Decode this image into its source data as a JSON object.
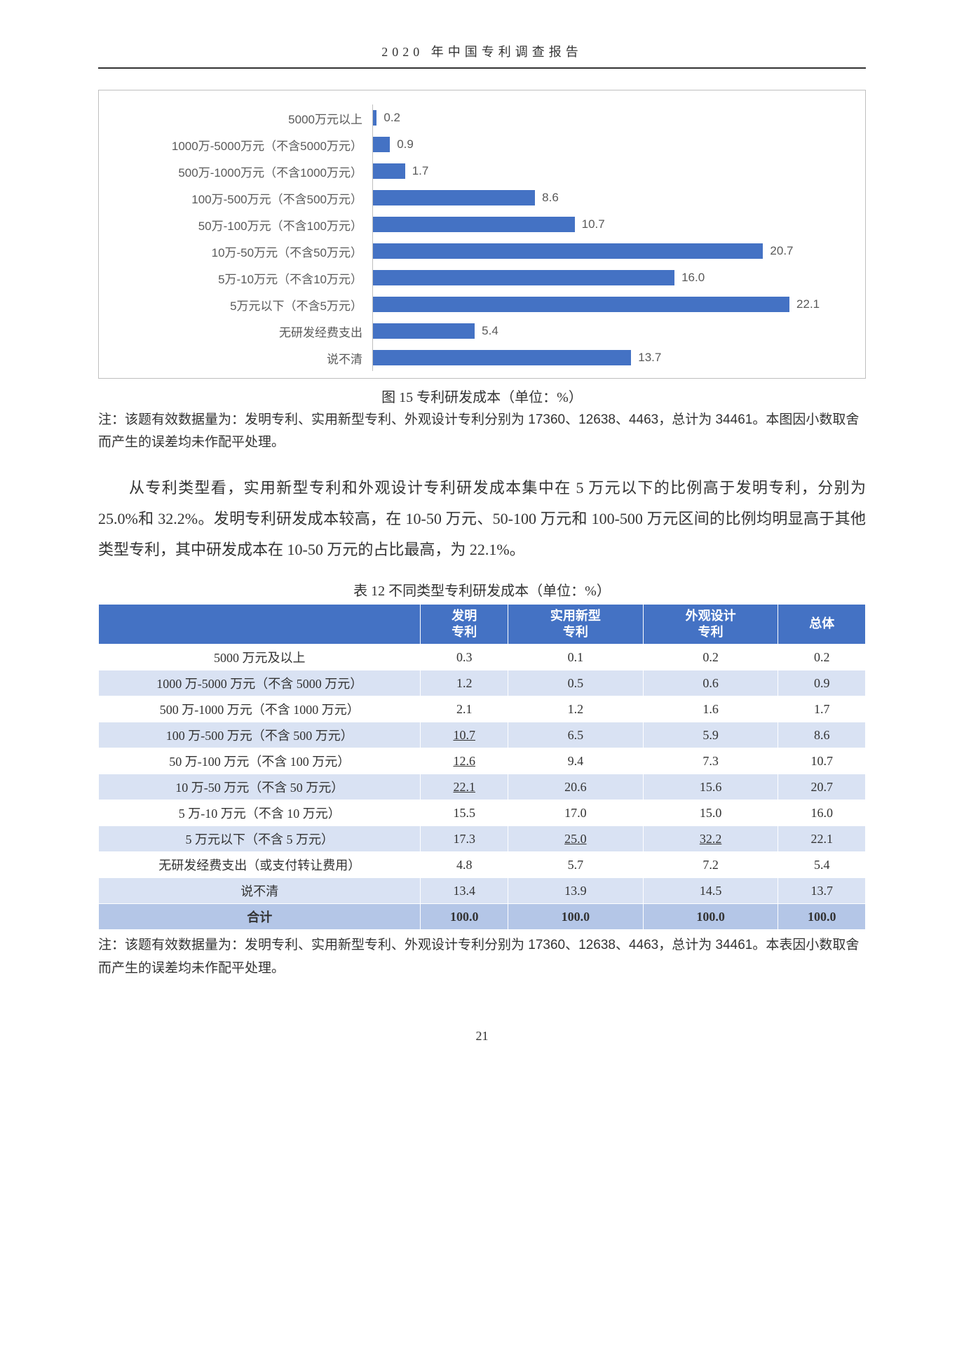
{
  "page": {
    "header_title": "2020 年中国专利调查报告",
    "page_number": "21"
  },
  "chart": {
    "type": "bar-horizontal",
    "max_value": 25,
    "bar_color": "#4472c4",
    "grid_color": "#bfbfbf",
    "label_fontsize": 17,
    "value_fontsize": 17,
    "background_color": "#ffffff",
    "categories": [
      "5000万元以上",
      "1000万-5000万元（不含5000万元）",
      "500万-1000万元（不含1000万元）",
      "100万-500万元（不含500万元）",
      "50万-100万元（不含100万元）",
      "10万-50万元（不含50万元）",
      "5万-10万元（不含10万元）",
      "5万元以下（不含5万元）",
      "无研发经费支出",
      "说不清"
    ],
    "values": [
      0.2,
      0.9,
      1.7,
      8.6,
      10.7,
      20.7,
      16.0,
      22.1,
      5.4,
      13.7
    ],
    "caption": "图 15  专利研发成本（单位：%）",
    "note": "注：该题有效数据量为：发明专利、实用新型专利、外观设计专利分别为 17360、12638、4463，总计为 34461。本图因小数取舍而产生的误差均未作配平处理。"
  },
  "paragraph": {
    "text": "从专利类型看，实用新型专利和外观设计专利研发成本集中在 5 万元以下的比例高于发明专利，分别为 25.0%和 32.2%。发明专利研发成本较高，在 10-50 万元、50-100 万元和 100-500 万元区间的比例均明显高于其他类型专利，其中研发成本在 10-50 万元的占比最高，为 22.1%。"
  },
  "table": {
    "caption": "表 12  不同类型专利研发成本（单位：%）",
    "header_bg": "#4472c4",
    "row_even_bg": "#ffffff",
    "row_odd_bg": "#d9e2f3",
    "total_bg": "#b4c6e7",
    "columns": [
      "",
      "发明\n专利",
      "实用新型\n专利",
      "外观设计\n专利",
      "总体"
    ],
    "rows": [
      {
        "label": "5000 万元及以上",
        "vals": [
          "0.3",
          "0.1",
          "0.2",
          "0.2"
        ],
        "u": []
      },
      {
        "label": "1000 万-5000 万元（不含 5000 万元）",
        "vals": [
          "1.2",
          "0.5",
          "0.6",
          "0.9"
        ],
        "u": []
      },
      {
        "label": "500 万-1000 万元（不含 1000 万元）",
        "vals": [
          "2.1",
          "1.2",
          "1.6",
          "1.7"
        ],
        "u": []
      },
      {
        "label": "100 万-500 万元（不含 500 万元）",
        "vals": [
          "10.7",
          "6.5",
          "5.9",
          "8.6"
        ],
        "u": [
          0
        ]
      },
      {
        "label": "50 万-100 万元（不含 100 万元）",
        "vals": [
          "12.6",
          "9.4",
          "7.3",
          "10.7"
        ],
        "u": [
          0
        ]
      },
      {
        "label": "10 万-50 万元（不含 50 万元）",
        "vals": [
          "22.1",
          "20.6",
          "15.6",
          "20.7"
        ],
        "u": [
          0
        ]
      },
      {
        "label": "5 万-10 万元（不含 10 万元）",
        "vals": [
          "15.5",
          "17.0",
          "15.0",
          "16.0"
        ],
        "u": []
      },
      {
        "label": "5 万元以下（不含 5 万元）",
        "vals": [
          "17.3",
          "25.0",
          "32.2",
          "22.1"
        ],
        "u": [
          1,
          2
        ]
      },
      {
        "label": "无研发经费支出（或支付转让费用）",
        "vals": [
          "4.8",
          "5.7",
          "7.2",
          "5.4"
        ],
        "u": []
      },
      {
        "label": "说不清",
        "vals": [
          "13.4",
          "13.9",
          "14.5",
          "13.7"
        ],
        "u": []
      }
    ],
    "total": {
      "label": "合计",
      "vals": [
        "100.0",
        "100.0",
        "100.0",
        "100.0"
      ]
    },
    "note": "注：该题有效数据量为：发明专利、实用新型专利、外观设计专利分别为 17360、12638、4463，总计为 34461。本表因小数取舍而产生的误差均未作配平处理。"
  }
}
